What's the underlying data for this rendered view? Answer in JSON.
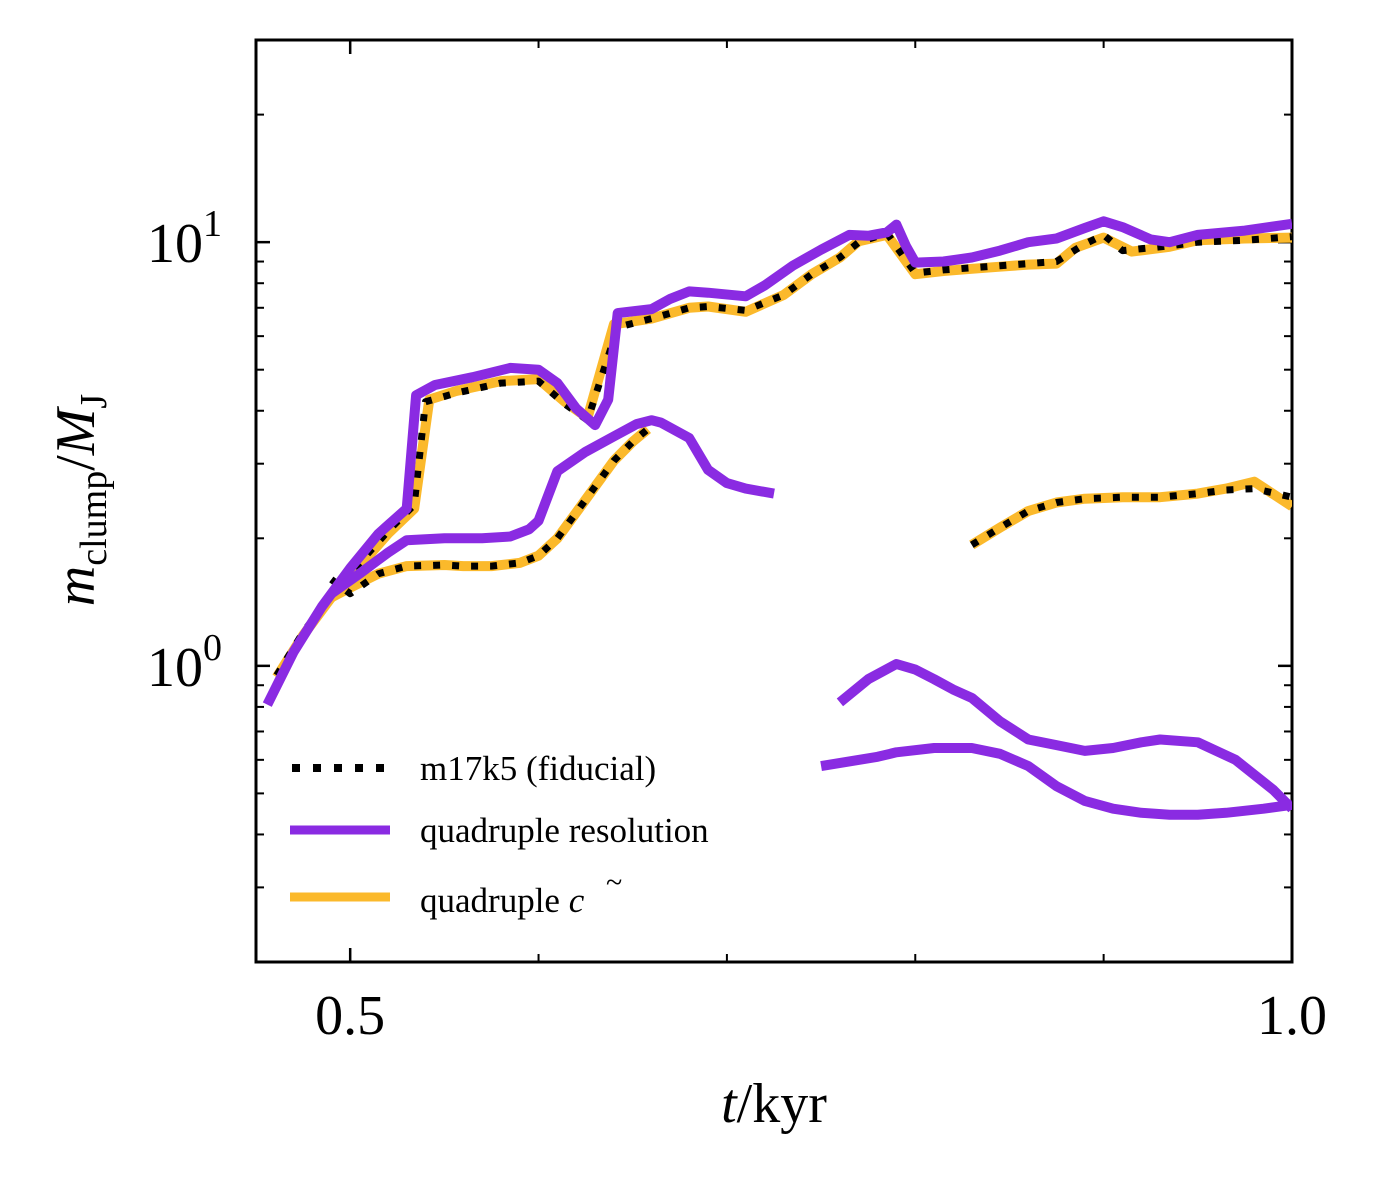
{
  "chart_data": {
    "type": "line",
    "title": "",
    "xlabel": {
      "italic": "t",
      "rest": "/kyr"
    },
    "ylabel": {
      "m": "m",
      "m_sub": "clump",
      "slash": "/",
      "M": "M",
      "M_sub": "J"
    },
    "xscale": "linear",
    "yscale": "log",
    "xlim": [
      0.45,
      1.0
    ],
    "ylim": [
      0.2,
      30
    ],
    "x_tick_labels": [
      {
        "value": 0.5,
        "label": "0.5"
      },
      {
        "value": 1.0,
        "label": "1.0"
      }
    ],
    "x_minor_ticks": [
      0.6,
      0.7,
      0.8,
      0.9
    ],
    "y_tick_labels": [
      {
        "value": 1,
        "base": "10",
        "exp": "0"
      },
      {
        "value": 10,
        "base": "10",
        "exp": "1"
      }
    ],
    "y_minor_ticks": [
      0.3,
      0.4,
      0.5,
      0.6,
      0.7,
      0.8,
      0.9,
      2,
      3,
      4,
      5,
      6,
      7,
      8,
      9,
      20
    ],
    "grid": false,
    "legend": {
      "location": "lower-left",
      "entries": [
        {
          "series": "fiducial",
          "label": "m17k5 (fiducial)"
        },
        {
          "series": "quad_res",
          "label": "quadruple resolution"
        },
        {
          "series": "quad_c",
          "label": "quadruple ",
          "label_math": "c",
          "label_math_accent": "~"
        }
      ]
    },
    "series": [
      {
        "id": "quad_c",
        "name": "quadruple c~",
        "color": "#fbb92b",
        "style": "solid",
        "segments": [
          {
            "x": [
              0.461,
              0.475,
              0.49,
              0.505,
              0.52,
              0.534,
              0.542,
              0.556,
              0.58,
              0.6,
              0.614,
              0.626,
              0.64,
              0.66,
              0.68,
              0.69,
              0.71,
              0.73,
              0.745,
              0.76,
              0.77,
              0.785,
              0.8,
              0.815,
              0.83,
              0.845,
              0.86,
              0.875,
              0.885,
              0.9,
              0.915,
              0.935,
              0.95,
              0.975,
              1.0
            ],
            "y": [
              0.94,
              1.18,
              1.45,
              1.72,
              2.05,
              2.35,
              4.25,
              4.45,
              4.7,
              4.75,
              4.2,
              3.85,
              6.4,
              6.6,
              7.0,
              7.05,
              6.85,
              7.5,
              8.4,
              9.2,
              10.05,
              10.4,
              8.4,
              8.55,
              8.65,
              8.75,
              8.85,
              8.9,
              9.7,
              10.25,
              9.5,
              9.75,
              10.1,
              10.2,
              10.25
            ]
          },
          {
            "x": [
              0.49,
              0.5,
              0.515,
              0.53,
              0.55,
              0.56,
              0.575,
              0.59,
              0.6,
              0.61,
              0.62,
              0.63,
              0.64,
              0.65,
              0.658
            ],
            "y": [
              1.45,
              1.53,
              1.65,
              1.72,
              1.73,
              1.72,
              1.72,
              1.75,
              1.82,
              2.0,
              2.3,
              2.65,
              3.05,
              3.38,
              3.62
            ]
          },
          {
            "x": [
              0.83,
              0.845,
              0.86,
              0.875,
              0.89,
              0.91,
              0.93,
              0.95,
              0.965,
              0.98,
              1.0
            ],
            "y": [
              1.93,
              2.12,
              2.32,
              2.43,
              2.48,
              2.5,
              2.5,
              2.55,
              2.62,
              2.72,
              2.38
            ]
          }
        ]
      },
      {
        "id": "fiducial",
        "name": "m17k5 (fiducial)",
        "color": "#000000",
        "style": "dotted",
        "segments": [
          {
            "x": [
              0.461,
              0.475,
              0.49,
              0.505,
              0.52,
              0.534,
              0.54,
              0.556,
              0.58,
              0.6,
              0.614,
              0.626,
              0.642,
              0.66,
              0.68,
              0.69,
              0.71,
              0.73,
              0.745,
              0.76,
              0.77,
              0.785,
              0.8,
              0.815,
              0.83,
              0.845,
              0.86,
              0.875,
              0.89,
              0.9,
              0.91,
              0.935,
              0.95,
              0.975,
              1.0
            ],
            "y": [
              0.95,
              1.2,
              1.47,
              1.75,
              2.08,
              2.4,
              4.2,
              4.4,
              4.65,
              4.7,
              4.15,
              3.8,
              6.3,
              6.6,
              7.0,
              7.05,
              6.9,
              7.5,
              8.4,
              9.2,
              10.0,
              10.5,
              8.45,
              8.6,
              8.7,
              8.8,
              8.9,
              9.0,
              9.9,
              10.4,
              9.55,
              9.8,
              10.0,
              10.1,
              10.3
            ]
          },
          {
            "x": [
              0.49,
              0.5,
              0.515,
              0.53,
              0.55,
              0.56,
              0.575,
              0.59,
              0.6,
              0.61,
              0.62,
              0.63,
              0.64,
              0.65,
              0.658
            ],
            "y": [
              1.6,
              1.48,
              1.65,
              1.72,
              1.73,
              1.72,
              1.72,
              1.75,
              1.82,
              2.0,
              2.3,
              2.65,
              3.05,
              3.38,
              3.62
            ]
          },
          {
            "x": [
              0.83,
              0.845,
              0.86,
              0.875,
              0.89,
              0.91,
              0.93,
              0.95,
              0.965,
              0.98,
              1.0
            ],
            "y": [
              1.93,
              2.12,
              2.32,
              2.43,
              2.48,
              2.5,
              2.5,
              2.55,
              2.6,
              2.62,
              2.5
            ]
          }
        ]
      },
      {
        "id": "quad_res",
        "name": "quadruple resolution",
        "color": "#8a2be2",
        "style": "solid",
        "segments": [
          {
            "x": [
              0.456,
              0.47,
              0.485,
              0.5,
              0.515,
              0.53,
              0.535,
              0.545,
              0.565,
              0.585,
              0.6,
              0.61,
              0.62,
              0.63,
              0.637,
              0.642,
              0.66,
              0.67,
              0.68,
              0.69,
              0.71,
              0.72,
              0.735,
              0.75,
              0.765,
              0.775,
              0.785,
              0.79,
              0.795,
              0.8,
              0.815,
              0.83,
              0.845,
              0.86,
              0.875,
              0.89,
              0.9,
              0.91,
              0.925,
              0.935,
              0.95,
              0.975,
              1.0
            ],
            "y": [
              0.81,
              1.08,
              1.38,
              1.7,
              2.05,
              2.35,
              4.35,
              4.6,
              4.8,
              5.05,
              5.0,
              4.65,
              4.05,
              3.7,
              4.25,
              6.8,
              6.95,
              7.35,
              7.65,
              7.6,
              7.45,
              7.9,
              8.8,
              9.6,
              10.4,
              10.35,
              10.55,
              11.0,
              9.8,
              8.95,
              9.0,
              9.2,
              9.55,
              10.0,
              10.2,
              10.8,
              11.2,
              10.85,
              10.15,
              10.0,
              10.4,
              10.65,
              11.05
            ]
          },
          {
            "x": [
              0.49,
              0.505,
              0.52,
              0.53,
              0.55,
              0.57,
              0.585,
              0.595,
              0.6,
              0.61,
              0.625,
              0.64,
              0.652,
              0.66,
              0.665,
              0.68,
              0.69,
              0.7,
              0.71,
              0.725
            ],
            "y": [
              1.48,
              1.65,
              1.85,
              1.98,
              2.0,
              2.0,
              2.02,
              2.1,
              2.2,
              2.88,
              3.2,
              3.48,
              3.72,
              3.8,
              3.75,
              3.45,
              2.9,
              2.7,
              2.62,
              2.55
            ]
          },
          {
            "x": [
              0.76,
              0.775,
              0.79,
              0.8,
              0.81,
              0.82,
              0.83,
              0.845,
              0.86,
              0.875,
              0.89,
              0.905,
              0.92,
              0.93,
              0.95,
              0.97,
              0.99,
              1.0
            ],
            "y": [
              0.82,
              0.93,
              1.01,
              0.98,
              0.93,
              0.88,
              0.84,
              0.74,
              0.67,
              0.65,
              0.63,
              0.64,
              0.66,
              0.67,
              0.66,
              0.6,
              0.51,
              0.46
            ]
          },
          {
            "x": [
              0.75,
              0.765,
              0.78,
              0.79,
              0.81,
              0.83,
              0.845,
              0.86,
              0.875,
              0.89,
              0.905,
              0.92,
              0.935,
              0.95,
              0.965,
              0.985,
              1.0
            ],
            "y": [
              0.58,
              0.595,
              0.61,
              0.625,
              0.64,
              0.64,
              0.62,
              0.58,
              0.52,
              0.48,
              0.46,
              0.45,
              0.445,
              0.445,
              0.45,
              0.46,
              0.47
            ]
          }
        ]
      }
    ]
  }
}
